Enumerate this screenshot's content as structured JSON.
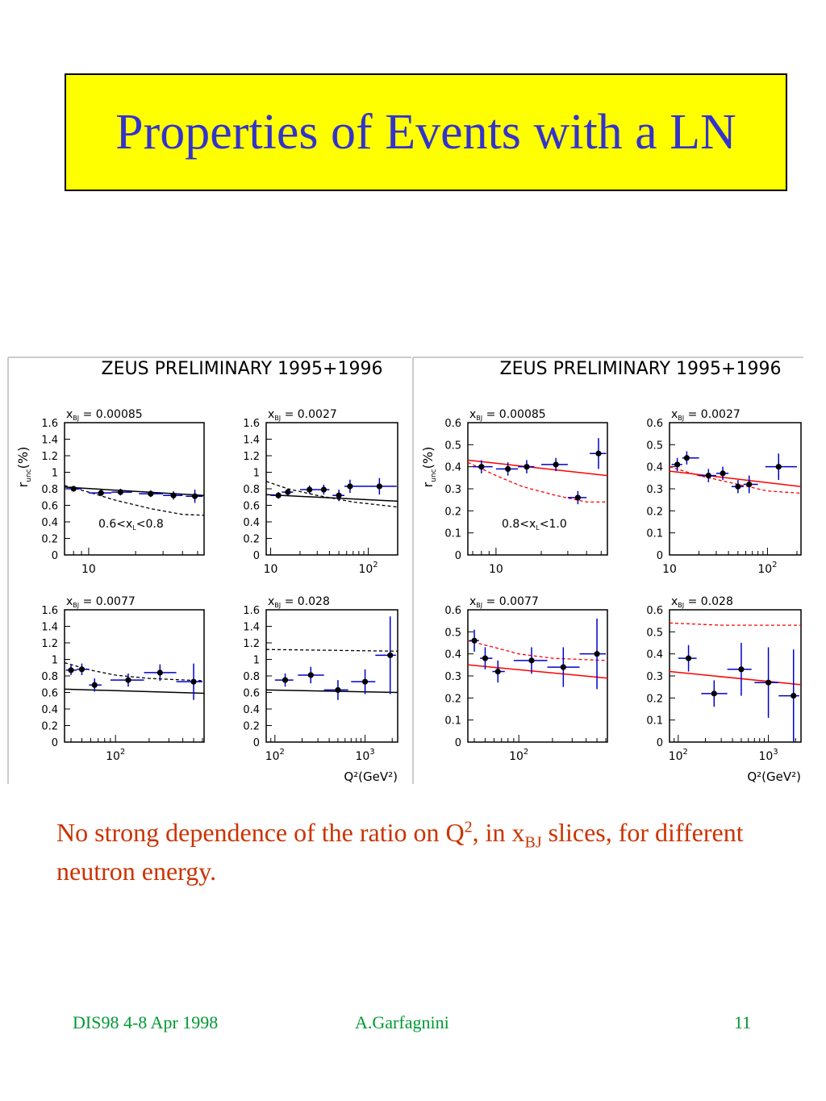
{
  "title": "Properties of Events with a LN",
  "colors": {
    "title_bg": "#ffff00",
    "title_text": "#3333cc",
    "caption": "#cc3300",
    "footer": "#009933",
    "points": "#0000cc",
    "model": "#ff0000"
  },
  "caption": {
    "part1": "No strong dependence of the ratio on Q",
    "sup": "2",
    "part2": ", in x",
    "sub": "BJ",
    "part3": " slices, for different neutron energy."
  },
  "footer": {
    "left": "DIS98 4-8 Apr 1998",
    "center": "A.Garfagnini",
    "right": "11"
  },
  "chart_data": [
    {
      "type": "scatter",
      "title": "ZEUS PRELIMINARY 1995+1996",
      "ylabel": "r_unc(%)",
      "xlabel": "Q²(GeV²)",
      "annotation": "0.6<x_L<0.8",
      "ylim": [
        0,
        1.6
      ],
      "ytick_labels": [
        "0",
        "0.2",
        "0.4",
        "0.6",
        "0.8",
        "1",
        "1.2",
        "1.4",
        "1.6"
      ],
      "panels": [
        {
          "label": "x_BJ = 0.00085",
          "xlim": [
            7,
            55
          ],
          "xticks": [
            {
              "v": 10,
              "t": "10"
            }
          ],
          "points": [
            {
              "x": 8,
              "y": 0.8,
              "yerr": 0.03,
              "xerr": [
                7.2,
                9
              ]
            },
            {
              "x": 12,
              "y": 0.75,
              "yerr": 0.04,
              "xerr": [
                10,
                14
              ]
            },
            {
              "x": 16,
              "y": 0.76,
              "yerr": 0.04,
              "xerr": [
                14,
                19
              ]
            },
            {
              "x": 25,
              "y": 0.74,
              "yerr": 0.04,
              "xerr": [
                21,
                30
              ]
            },
            {
              "x": 35,
              "y": 0.72,
              "yerr": 0.05,
              "xerr": [
                30,
                40
              ]
            },
            {
              "x": 48,
              "y": 0.71,
              "yerr": 0.08,
              "xerr": [
                42,
                54
              ]
            }
          ],
          "solid": [
            [
              7,
              0.82
            ],
            [
              55,
              0.72
            ]
          ],
          "dashed": [
            [
              7,
              0.84
            ],
            [
              10,
              0.76
            ],
            [
              15,
              0.66
            ],
            [
              25,
              0.56
            ],
            [
              40,
              0.49
            ],
            [
              55,
              0.48
            ]
          ]
        },
        {
          "label": "x_BJ = 0.0027",
          "xlim": [
            9,
            200
          ],
          "xticks": [
            {
              "v": 10,
              "t": "10"
            },
            {
              "v": 100,
              "t": "10²"
            }
          ],
          "points": [
            {
              "x": 12,
              "y": 0.72,
              "yerr": 0.04,
              "xerr": [
                10,
                13
              ]
            },
            {
              "x": 15,
              "y": 0.76,
              "yerr": 0.04,
              "xerr": [
                13,
                17
              ]
            },
            {
              "x": 25,
              "y": 0.79,
              "yerr": 0.05,
              "xerr": [
                20,
                30
              ]
            },
            {
              "x": 35,
              "y": 0.79,
              "yerr": 0.06,
              "xerr": [
                30,
                40
              ]
            },
            {
              "x": 50,
              "y": 0.72,
              "yerr": 0.07,
              "xerr": [
                43,
                57
              ]
            },
            {
              "x": 65,
              "y": 0.83,
              "yerr": 0.08,
              "xerr": [
                57,
                100
              ]
            },
            {
              "x": 130,
              "y": 0.83,
              "yerr": 0.1,
              "xerr": [
                100,
                195
              ]
            }
          ],
          "solid": [
            [
              9,
              0.73
            ],
            [
              200,
              0.65
            ]
          ],
          "dashed": [
            [
              9,
              0.89
            ],
            [
              15,
              0.8
            ],
            [
              30,
              0.72
            ],
            [
              70,
              0.64
            ],
            [
              200,
              0.58
            ]
          ]
        },
        {
          "label": "x_BJ = 0.0077",
          "xlim": [
            35,
            620
          ],
          "xticks": [
            {
              "v": 100,
              "t": "10²"
            }
          ],
          "points": [
            {
              "x": 40,
              "y": 0.87,
              "yerr": 0.06,
              "xerr": [
                36,
                45
              ]
            },
            {
              "x": 50,
              "y": 0.88,
              "yerr": 0.07,
              "xerr": [
                45,
                58
              ]
            },
            {
              "x": 65,
              "y": 0.69,
              "yerr": 0.08,
              "xerr": [
                58,
                75
              ]
            },
            {
              "x": 130,
              "y": 0.75,
              "yerr": 0.08,
              "xerr": [
                90,
                180
              ]
            },
            {
              "x": 250,
              "y": 0.84,
              "yerr": 0.1,
              "xerr": [
                180,
                350
              ]
            },
            {
              "x": 500,
              "y": 0.73,
              "yerr": 0.22,
              "xerr": [
                350,
                600
              ]
            }
          ],
          "solid": [
            [
              35,
              0.64
            ],
            [
              620,
              0.59
            ]
          ],
          "dashed": [
            [
              35,
              0.96
            ],
            [
              60,
              0.87
            ],
            [
              100,
              0.81
            ],
            [
              200,
              0.77
            ],
            [
              620,
              0.74
            ]
          ]
        },
        {
          "label": "x_BJ = 0.028",
          "xlim": [
            80,
            2300
          ],
          "xticks": [
            {
              "v": 100,
              "t": "10²"
            },
            {
              "v": 1000,
              "t": "10³"
            }
          ],
          "points": [
            {
              "x": 130,
              "y": 0.75,
              "yerr": 0.08,
              "xerr": [
                100,
                160
              ]
            },
            {
              "x": 250,
              "y": 0.81,
              "yerr": 0.1,
              "xerr": [
                180,
                350
              ]
            },
            {
              "x": 500,
              "y": 0.63,
              "yerr": 0.12,
              "xerr": [
                350,
                650
              ]
            },
            {
              "x": 1000,
              "y": 0.73,
              "yerr": 0.15,
              "xerr": [
                700,
                1300
              ]
            },
            {
              "x": 1900,
              "y": 1.05,
              "yerr": 0.47,
              "xerr": [
                1300,
                2200
              ]
            }
          ],
          "solid": [
            [
              80,
              0.63
            ],
            [
              2300,
              0.6
            ]
          ],
          "dashed": [
            [
              80,
              1.12
            ],
            [
              2300,
              1.1
            ]
          ]
        }
      ]
    },
    {
      "type": "scatter",
      "title": "ZEUS PRELIMINARY 1995+1996",
      "ylabel": "r_unc(%)",
      "xlabel": "Q²(GeV²)",
      "annotation": "0.8<x_L<1.0",
      "ylim": [
        0,
        0.6
      ],
      "ytick_labels": [
        "0",
        "0.1",
        "0.2",
        "0.3",
        "0.4",
        "0.5",
        "0.6"
      ],
      "panels": [
        {
          "label": "x_BJ = 0.00085",
          "xlim": [
            6.5,
            55
          ],
          "xticks": [
            {
              "v": 10,
              "t": "10"
            }
          ],
          "points": [
            {
              "x": 8,
              "y": 0.4,
              "yerr": 0.03,
              "xerr": [
                7,
                9.5
              ]
            },
            {
              "x": 12,
              "y": 0.39,
              "yerr": 0.03,
              "xerr": [
                10,
                14
              ]
            },
            {
              "x": 16,
              "y": 0.4,
              "yerr": 0.03,
              "xerr": [
                14,
                18
              ]
            },
            {
              "x": 25,
              "y": 0.41,
              "yerr": 0.03,
              "xerr": [
                20,
                30
              ]
            },
            {
              "x": 35,
              "y": 0.26,
              "yerr": 0.03,
              "xerr": [
                30,
                40
              ]
            },
            {
              "x": 48,
              "y": 0.46,
              "yerr": 0.07,
              "xerr": [
                42,
                54
              ]
            }
          ],
          "solid": [
            [
              6.5,
              0.43
            ],
            [
              55,
              0.36
            ]
          ],
          "dashed": [
            [
              6.5,
              0.42
            ],
            [
              10,
              0.36
            ],
            [
              15,
              0.31
            ],
            [
              25,
              0.27
            ],
            [
              40,
              0.24
            ],
            [
              55,
              0.24
            ]
          ]
        },
        {
          "label": "x_BJ = 0.0027",
          "xlim": [
            10,
            220
          ],
          "xticks": [
            {
              "v": 10,
              "t": "10"
            },
            {
              "v": 100,
              "t": "10²"
            }
          ],
          "points": [
            {
              "x": 12,
              "y": 0.41,
              "yerr": 0.03,
              "xerr": [
                10.5,
                13.5
              ]
            },
            {
              "x": 15,
              "y": 0.44,
              "yerr": 0.03,
              "xerr": [
                13.5,
                20
              ]
            },
            {
              "x": 25,
              "y": 0.36,
              "yerr": 0.03,
              "xerr": [
                20,
                30
              ]
            },
            {
              "x": 35,
              "y": 0.37,
              "yerr": 0.03,
              "xerr": [
                30,
                40
              ]
            },
            {
              "x": 50,
              "y": 0.31,
              "yerr": 0.03,
              "xerr": [
                43,
                57
              ]
            },
            {
              "x": 65,
              "y": 0.32,
              "yerr": 0.04,
              "xerr": [
                57,
                80
              ]
            },
            {
              "x": 130,
              "y": 0.4,
              "yerr": 0.06,
              "xerr": [
                95,
                200
              ]
            }
          ],
          "solid": [
            [
              10,
              0.38
            ],
            [
              220,
              0.31
            ]
          ],
          "dashed": [
            [
              10,
              0.4
            ],
            [
              20,
              0.36
            ],
            [
              50,
              0.32
            ],
            [
              100,
              0.29
            ],
            [
              220,
              0.28
            ]
          ]
        },
        {
          "label": "x_BJ = 0.0077",
          "xlim": [
            35,
            620
          ],
          "xticks": [
            {
              "v": 100,
              "t": "10²"
            }
          ],
          "points": [
            {
              "x": 40,
              "y": 0.46,
              "yerr": 0.05,
              "xerr": [
                36,
                44
              ]
            },
            {
              "x": 50,
              "y": 0.38,
              "yerr": 0.05,
              "xerr": [
                45,
                58
              ]
            },
            {
              "x": 65,
              "y": 0.32,
              "yerr": 0.05,
              "xerr": [
                58,
                75
              ]
            },
            {
              "x": 130,
              "y": 0.37,
              "yerr": 0.06,
              "xerr": [
                90,
                180
              ]
            },
            {
              "x": 250,
              "y": 0.34,
              "yerr": 0.09,
              "xerr": [
                180,
                350
              ]
            },
            {
              "x": 500,
              "y": 0.4,
              "yerr": 0.16,
              "xerr": [
                350,
                600
              ]
            }
          ],
          "solid": [
            [
              35,
              0.35
            ],
            [
              620,
              0.29
            ]
          ],
          "dashed": [
            [
              35,
              0.46
            ],
            [
              60,
              0.43
            ],
            [
              100,
              0.4
            ],
            [
              200,
              0.38
            ],
            [
              620,
              0.37
            ]
          ]
        },
        {
          "label": "x_BJ = 0.028",
          "xlim": [
            80,
            2300
          ],
          "xticks": [
            {
              "v": 100,
              "t": "10²"
            },
            {
              "v": 1000,
              "t": "10³"
            }
          ],
          "points": [
            {
              "x": 130,
              "y": 0.38,
              "yerr": 0.06,
              "xerr": [
                100,
                160
              ]
            },
            {
              "x": 250,
              "y": 0.22,
              "yerr": 0.06,
              "xerr": [
                180,
                350
              ]
            },
            {
              "x": 500,
              "y": 0.33,
              "yerr": 0.12,
              "xerr": [
                350,
                650
              ]
            },
            {
              "x": 1000,
              "y": 0.27,
              "yerr": 0.16,
              "xerr": [
                700,
                1300
              ]
            },
            {
              "x": 1900,
              "y": 0.21,
              "yerr": 0.21,
              "xerr": [
                1300,
                2200
              ]
            }
          ],
          "solid": [
            [
              80,
              0.32
            ],
            [
              2300,
              0.26
            ]
          ],
          "dashed": [
            [
              80,
              0.54
            ],
            [
              300,
              0.53
            ],
            [
              2300,
              0.53
            ]
          ]
        }
      ]
    }
  ]
}
